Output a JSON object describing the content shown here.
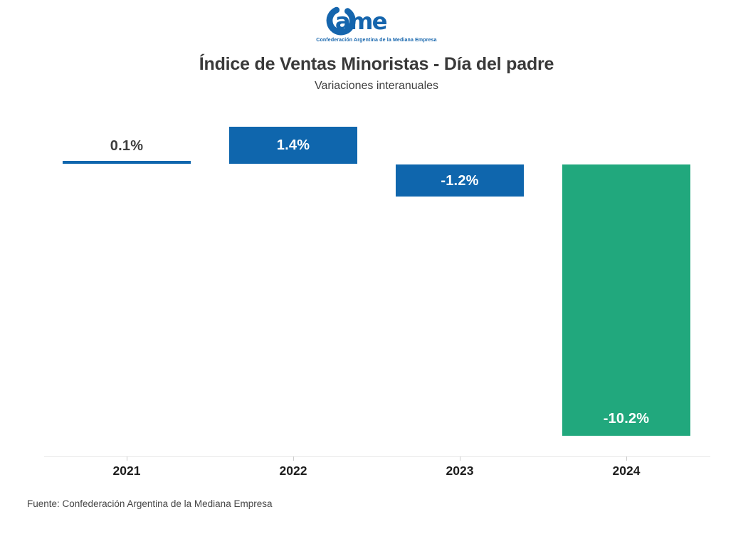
{
  "logo": {
    "name": "CAME",
    "wordmark_tail": "ame",
    "tagline": "Confederación Argentina de la Mediana Empresa",
    "color": "#1565ad"
  },
  "header": {
    "title": "Índice de Ventas Minoristas - Día del padre",
    "subtitle": "Variaciones interanuales"
  },
  "chart_data": {
    "type": "bar",
    "title": "Índice de Ventas Minoristas - Día del padre",
    "subtitle": "Variaciones interanuales",
    "categories": [
      "2021",
      "2022",
      "2023",
      "2024"
    ],
    "values": [
      0.1,
      1.4,
      -1.2,
      -10.2
    ],
    "value_labels": [
      "0.1%",
      "1.4%",
      "-1.2%",
      "-10.2%"
    ],
    "bar_colors": [
      "#0f66ad",
      "#0f66ad",
      "#0f66ad",
      "#21a87d"
    ],
    "xlabel": "",
    "ylabel": "",
    "ylim": [
      -11.5,
      2
    ],
    "baseline": 0,
    "grid": false,
    "legend": false
  },
  "colors": {
    "bar_blue": "#0f66ad",
    "bar_green": "#21a87d",
    "title_text": "#393939",
    "axis_line": "#e8e8e8",
    "tick": "#cccccc",
    "outside_label": "#3d3d3d",
    "inside_label": "#ffffff"
  },
  "footer": {
    "source": "Fuente: Confederación Argentina de la Mediana Empresa"
  }
}
